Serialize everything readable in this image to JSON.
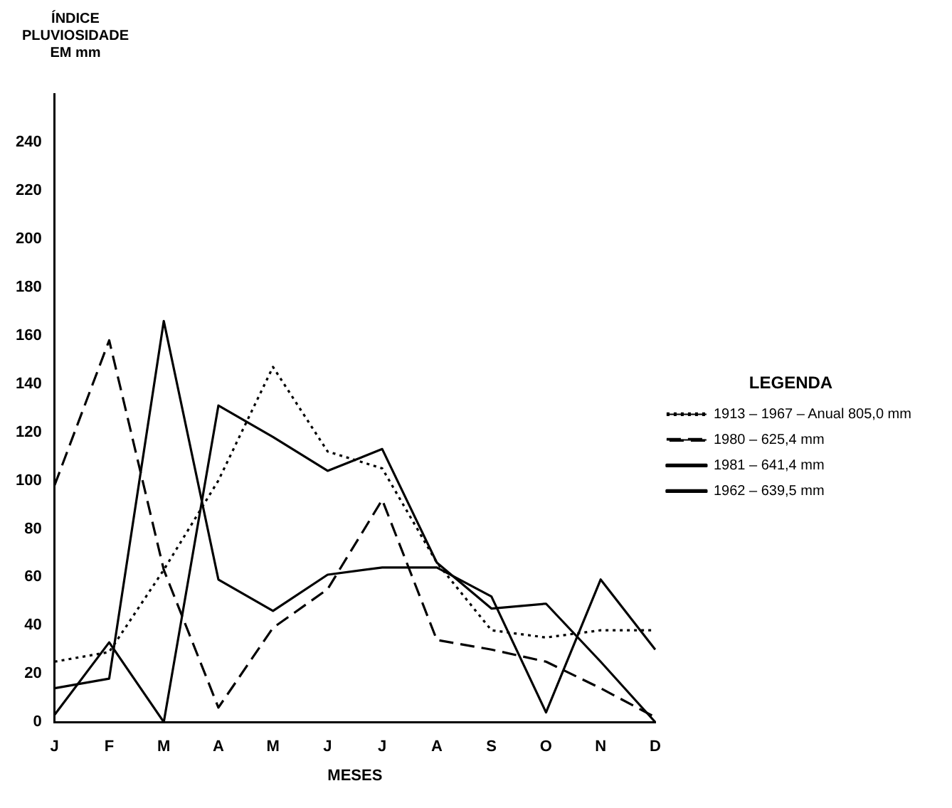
{
  "chart_data": {
    "type": "line",
    "ylabel": "ÍNDICE PLUVIOSIDADE EM mm",
    "xlabel": "MESES",
    "legend_title": "LEGENDA",
    "legend": "right",
    "grid": false,
    "marker": "none",
    "categories": [
      "J",
      "F",
      "M",
      "A",
      "M",
      "J",
      "J",
      "A",
      "S",
      "O",
      "N",
      "D"
    ],
    "ylim": [
      0,
      260
    ],
    "yticks": [
      0,
      20,
      40,
      60,
      80,
      100,
      120,
      140,
      160,
      180,
      200,
      220,
      240
    ],
    "series": [
      {
        "name": "1913 – 1967 – Anual 805,0 mm",
        "color": "#000000",
        "line_style": "dotted",
        "values": [
          25,
          29,
          63,
          100,
          147,
          112,
          105,
          66,
          38,
          35,
          38,
          38
        ]
      },
      {
        "name": "1980 – 625,4 mm",
        "color": "#000000",
        "line_style": "dashed",
        "values": [
          98,
          158,
          63,
          6,
          39,
          55,
          92,
          34,
          30,
          25,
          14,
          2
        ]
      },
      {
        "name": "1981 – 641,4 mm",
        "color": "#000000",
        "line_style": "solid",
        "values": [
          14,
          18,
          166,
          59,
          46,
          61,
          64,
          64,
          52,
          4,
          59,
          30
        ]
      },
      {
        "name": "1962 – 639,5 mm",
        "color": "#000000",
        "line_style": "solid",
        "values": [
          3,
          33,
          0,
          131,
          118,
          104,
          113,
          66,
          47,
          49,
          25,
          0
        ]
      }
    ]
  }
}
